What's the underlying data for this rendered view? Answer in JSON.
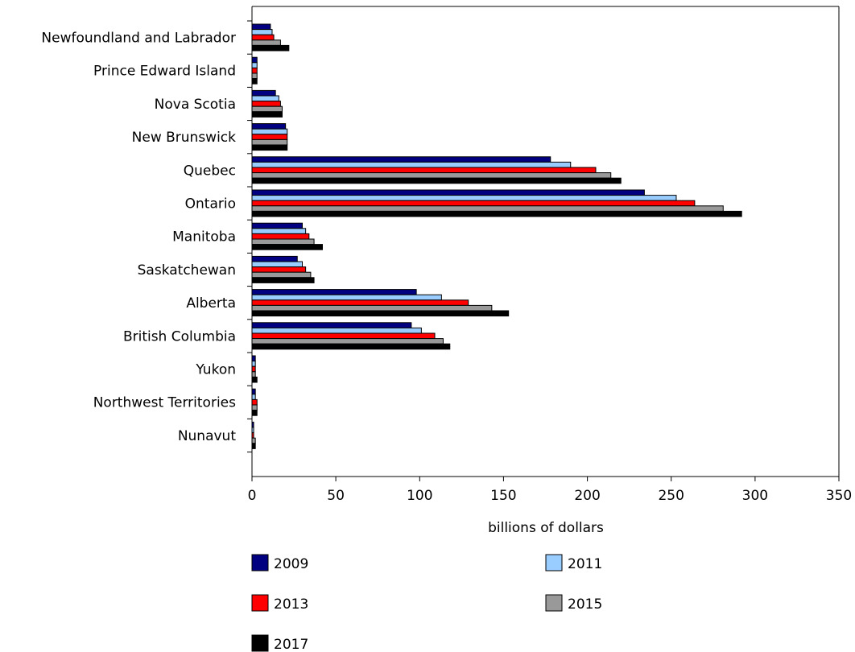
{
  "chart_data": {
    "type": "bar",
    "orientation": "horizontal",
    "categories": [
      "Newfoundland and Labrador",
      "Prince Edward Island",
      "Nova Scotia",
      "New Brunswick",
      "Quebec",
      "Ontario",
      "Manitoba",
      "Saskatchewan",
      "Alberta",
      "British Columbia",
      "Yukon",
      "Northwest Territories",
      "Nunavut"
    ],
    "series": [
      {
        "name": "2009",
        "color": "#000080",
        "values": [
          11,
          3,
          14,
          20,
          178,
          234,
          30,
          27,
          98,
          95,
          2,
          2,
          1
        ]
      },
      {
        "name": "2011",
        "color": "#99ccff",
        "values": [
          12,
          3,
          16,
          21,
          190,
          253,
          32,
          30,
          113,
          101,
          2,
          2,
          1
        ]
      },
      {
        "name": "2013",
        "color": "#ff0000",
        "values": [
          13,
          3,
          17,
          21,
          205,
          264,
          34,
          32,
          129,
          109,
          2,
          3,
          1
        ]
      },
      {
        "name": "2015",
        "color": "#999999",
        "values": [
          17,
          3,
          18,
          21,
          214,
          281,
          37,
          35,
          143,
          114,
          2,
          3,
          2
        ]
      },
      {
        "name": "2017",
        "color": "#000000",
        "values": [
          22,
          3,
          18,
          21,
          220,
          292,
          42,
          37,
          153,
          118,
          3,
          3,
          2
        ]
      }
    ],
    "xlabel": "billions of dollars",
    "ylabel": "",
    "xlim": [
      0,
      350
    ],
    "xticks": [
      0,
      50,
      100,
      150,
      200,
      250,
      300,
      350
    ],
    "grid": false,
    "legend_position": "bottom"
  }
}
